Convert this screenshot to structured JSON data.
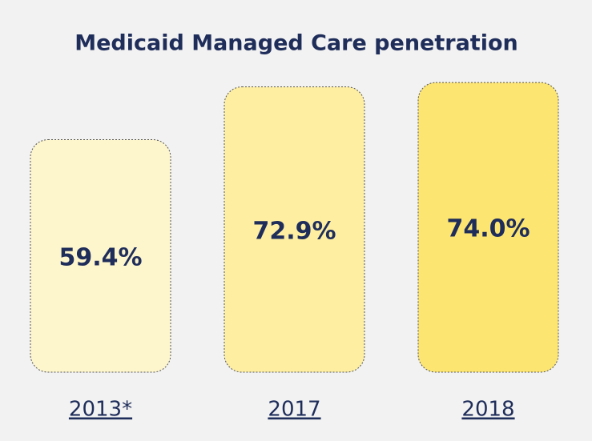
{
  "chart_data": {
    "type": "bar",
    "title": "Medicaid Managed Care penetration",
    "categories": [
      "2013*",
      "2017",
      "2018"
    ],
    "values": [
      59.4,
      72.9,
      74.0
    ],
    "value_labels": [
      "59.4%",
      "72.9%",
      "74.0%"
    ],
    "colors": [
      "#fdf5cc",
      "#fdeea2",
      "#fce571"
    ]
  }
}
